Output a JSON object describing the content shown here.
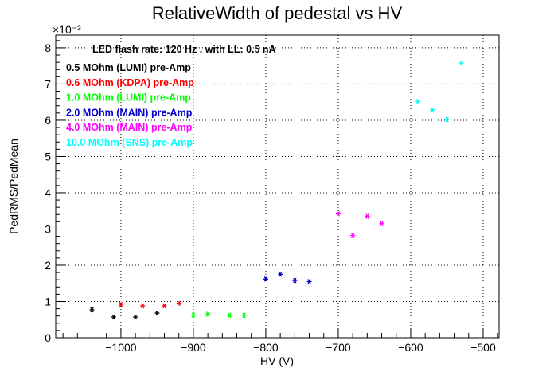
{
  "chart_data": {
    "type": "scatter",
    "title": "RelativeWidth of pedestal vs HV",
    "xlabel": "HV (V)",
    "ylabel": "PedRMS/PedMean",
    "y_exponent": "×10⁻³",
    "annotation": "LED flash rate: 120 Hz , with LL: 0.5 nA",
    "xlim": [
      -1090,
      -478
    ],
    "ylim": [
      0,
      8.35
    ],
    "x_ticks": [
      -1000,
      -900,
      -800,
      -700,
      -600,
      -500
    ],
    "x_tick_labels": [
      "−1000",
      "−900",
      "−800",
      "−700",
      "−600",
      "−500"
    ],
    "y_ticks": [
      0,
      1,
      2,
      3,
      4,
      5,
      6,
      7,
      8
    ],
    "y_tick_labels": [
      "0",
      "1",
      "2",
      "3",
      "4",
      "5",
      "6",
      "7",
      "8"
    ],
    "grid": true,
    "legend_position": "top-left",
    "series": [
      {
        "name": "0.5 MOhm (LUMI) pre-Amp",
        "color": "#000000",
        "x": [
          -1040,
          -1010,
          -980,
          -950
        ],
        "y": [
          0.77,
          0.57,
          0.57,
          0.68
        ]
      },
      {
        "name": "0.6 MOhm (KDPA) pre-Amp",
        "color": "#ff0000",
        "x": [
          -1000,
          -970,
          -940,
          -920
        ],
        "y": [
          0.92,
          0.88,
          0.88,
          0.95
        ]
      },
      {
        "name": "1.0 MOhm (LUMI) pre-Amp",
        "color": "#00ff00",
        "x": [
          -900,
          -880,
          -850,
          -830
        ],
        "y": [
          0.62,
          0.65,
          0.62,
          0.62
        ]
      },
      {
        "name": "2.0 MOhm (MAIN) pre-Amp",
        "color": "#0000cc",
        "x": [
          -800,
          -780,
          -760,
          -740
        ],
        "y": [
          1.62,
          1.75,
          1.58,
          1.55
        ]
      },
      {
        "name": "4.0 MOhm (MAIN) pre-Amp",
        "color": "#ff00ff",
        "x": [
          -700,
          -680,
          -660,
          -640
        ],
        "y": [
          3.42,
          2.82,
          3.35,
          3.15
        ]
      },
      {
        "name": "10.0 MOhm (SNS) pre-Amp",
        "color": "#00ffff",
        "x": [
          -590,
          -570,
          -550,
          -530
        ],
        "y": [
          6.52,
          6.28,
          6.02,
          7.58
        ]
      }
    ]
  }
}
